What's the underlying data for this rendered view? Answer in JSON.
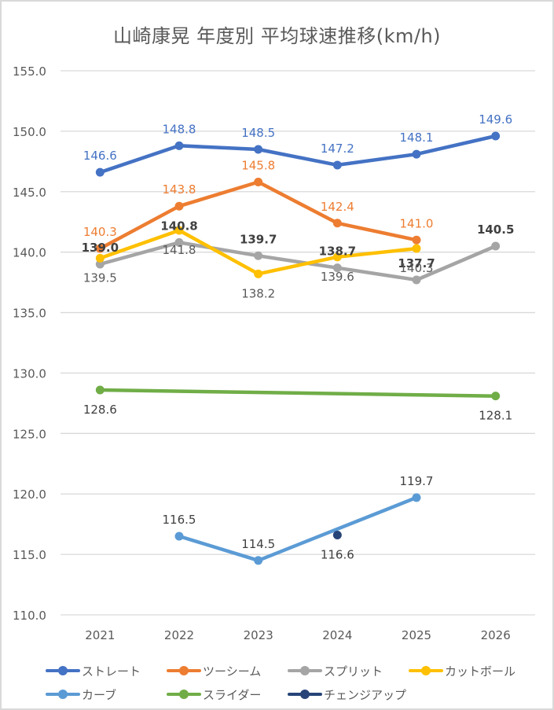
{
  "chart_data": {
    "type": "line",
    "title": "山崎康晃 年度別 平均球速推移(km/h)",
    "xlabel": "",
    "ylabel": "",
    "categories": [
      "2021",
      "2022",
      "2023",
      "2024",
      "2025",
      "2026"
    ],
    "ylim": [
      110,
      155
    ],
    "y_ticks": [
      "155.0",
      "150.0",
      "145.0",
      "140.0",
      "135.0",
      "130.0",
      "125.0",
      "120.0",
      "115.0",
      "110.0"
    ],
    "y_tick_values": [
      155,
      150,
      145,
      140,
      135,
      130,
      125,
      120,
      115,
      110
    ],
    "grid": true,
    "legend_position": "bottom",
    "series": [
      {
        "name": "ストレート",
        "color": "#4472c4",
        "label_color": "#4472c4",
        "label_weight": "normal",
        "values": [
          146.6,
          148.8,
          148.5,
          147.2,
          148.1,
          149.6
        ],
        "labels": [
          "146.6",
          "148.8",
          "148.5",
          "147.2",
          "148.1",
          "149.6"
        ],
        "label_pos": "above"
      },
      {
        "name": "ツーシーム",
        "color": "#ed7d31",
        "label_color": "#ed7d31",
        "label_weight": "normal",
        "values": [
          140.3,
          143.8,
          145.8,
          142.4,
          141.0,
          null
        ],
        "labels": [
          "140.3",
          "143.8",
          "145.8",
          "142.4",
          "141.0",
          null
        ],
        "label_pos": "above"
      },
      {
        "name": "スプリット",
        "color": "#a5a5a5",
        "label_color": "#404040",
        "label_weight": "bold",
        "values": [
          139.0,
          140.8,
          139.7,
          138.7,
          137.7,
          140.5
        ],
        "labels": [
          "139.0",
          "140.8",
          "139.7",
          "138.7",
          "137.7",
          "140.5"
        ],
        "label_pos": "above"
      },
      {
        "name": "カットボール",
        "color": "#ffc000",
        "label_color": "#595959",
        "label_weight": "normal",
        "values": [
          139.5,
          141.8,
          138.2,
          139.6,
          140.3,
          null
        ],
        "labels": [
          "139.5",
          "141.8",
          "138.2",
          "139.6",
          "140.3",
          null
        ],
        "label_pos": "below"
      },
      {
        "name": "カーブ",
        "color": "#5b9bd5",
        "label_color": "#404040",
        "label_weight": "normal",
        "values": [
          null,
          116.5,
          114.5,
          null,
          119.7,
          null
        ],
        "labels": [
          null,
          "116.5",
          "114.5",
          null,
          "119.7",
          null
        ],
        "label_pos": "above",
        "connect_gaps": true
      },
      {
        "name": "スライダー",
        "color": "#70ad47",
        "label_color": "#404040",
        "label_weight": "normal",
        "values": [
          128.6,
          null,
          null,
          null,
          null,
          128.1
        ],
        "labels": [
          "128.6",
          null,
          null,
          null,
          null,
          "128.1"
        ],
        "label_pos": "below",
        "connect_gaps": true
      },
      {
        "name": "チェンジアップ",
        "color": "#264478",
        "label_color": "#404040",
        "label_weight": "normal",
        "values": [
          null,
          null,
          null,
          116.6,
          null,
          null
        ],
        "labels": [
          null,
          null,
          null,
          "116.6",
          null,
          null
        ],
        "label_pos": "below"
      }
    ]
  }
}
